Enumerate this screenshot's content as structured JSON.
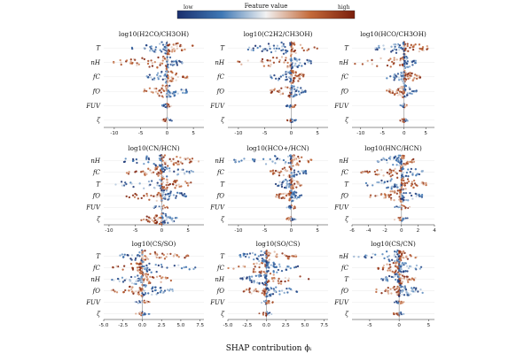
{
  "colorbar": {
    "title": "Feature value",
    "low_label": "low",
    "high_label": "high",
    "low_color": "#1a2f6e",
    "mid_color": "#f2f2f2",
    "high_color": "#7a1e0c"
  },
  "xlabel": "SHAP contribution ϕᵢ",
  "chart_data": [
    {
      "type": "beeswarm",
      "title": "log10(H2CO/CH3OH)",
      "features": [
        "T",
        "nH",
        "fC",
        "fO",
        "FUV",
        "ζ"
      ],
      "xlim": [
        -12,
        7
      ],
      "xticks": [
        -10,
        -5,
        0,
        5
      ],
      "spreads": [
        [
          -7,
          6
        ],
        [
          -11,
          3
        ],
        [
          -4,
          4
        ],
        [
          -5,
          4
        ],
        [
          -1,
          1
        ],
        [
          -1,
          1
        ]
      ]
    },
    {
      "type": "beeswarm",
      "title": "log10(C2H2/CH3OH)",
      "features": [
        "T",
        "nH",
        "fC",
        "fO",
        "FUV",
        "ζ"
      ],
      "xlim": [
        -12,
        7
      ],
      "xticks": [
        -10,
        -5,
        0,
        5
      ],
      "spreads": [
        [
          -9,
          5
        ],
        [
          -11,
          4
        ],
        [
          -4,
          3
        ],
        [
          -4,
          3
        ],
        [
          -1,
          1
        ],
        [
          -1,
          1
        ]
      ]
    },
    {
      "type": "beeswarm",
      "title": "log10(HCO/CH3OH)",
      "features": [
        "T",
        "nH",
        "fC",
        "fO",
        "FUV",
        "ζ"
      ],
      "xlim": [
        -12,
        7
      ],
      "xticks": [
        -10,
        -5,
        0,
        5
      ],
      "spreads": [
        [
          -7,
          6
        ],
        [
          -12,
          3
        ],
        [
          -4,
          4
        ],
        [
          -4,
          3
        ],
        [
          -1,
          1
        ],
        [
          -1,
          1
        ]
      ]
    },
    {
      "type": "beeswarm",
      "title": "log10(CN/HCN)",
      "features": [
        "nH",
        "fC",
        "T",
        "fO",
        "FUV",
        "ζ"
      ],
      "xlim": [
        -11,
        8
      ],
      "xticks": [
        -10,
        -5,
        0,
        5
      ],
      "spreads": [
        [
          -8,
          7
        ],
        [
          -7,
          6
        ],
        [
          -10,
          6
        ],
        [
          -7,
          5
        ],
        [
          -2,
          2
        ],
        [
          -4,
          3
        ]
      ]
    },
    {
      "type": "beeswarm",
      "title": "log10(HCO+/HCN)",
      "features": [
        "nH",
        "fC",
        "T",
        "fO",
        "FUV",
        "ζ"
      ],
      "xlim": [
        -12,
        7
      ],
      "xticks": [
        -10,
        -5,
        0,
        5
      ],
      "spreads": [
        [
          -11,
          5
        ],
        [
          -4,
          3
        ],
        [
          -3,
          2
        ],
        [
          -3,
          2
        ],
        [
          -1,
          1
        ],
        [
          -1,
          1
        ]
      ]
    },
    {
      "type": "beeswarm",
      "title": "log10(HNC/HCN)",
      "features": [
        "nH",
        "fC",
        "T",
        "fO",
        "FUV",
        "ζ"
      ],
      "xlim": [
        -6,
        4
      ],
      "xticks": [
        -6,
        -4,
        -2,
        0,
        2,
        4
      ],
      "spreads": [
        [
          -3,
          2
        ],
        [
          -5,
          3
        ],
        [
          -5,
          3
        ],
        [
          -4,
          3
        ],
        [
          -1,
          1
        ],
        [
          -1,
          1
        ]
      ]
    },
    {
      "type": "beeswarm",
      "title": "log10(CS/SO)",
      "features": [
        "T",
        "fC",
        "nH",
        "fO",
        "FUV",
        "ζ"
      ],
      "xlim": [
        -5,
        8
      ],
      "xticks": [
        -5.0,
        -2.5,
        0.0,
        2.5,
        5.0,
        7.5
      ],
      "spreads": [
        [
          -3,
          6
        ],
        [
          -4,
          7
        ],
        [
          -4,
          4
        ],
        [
          -4,
          4
        ],
        [
          -1,
          1
        ],
        [
          -1,
          1
        ]
      ]
    },
    {
      "type": "beeswarm",
      "title": "log10(SO/CS)",
      "features": [
        "T",
        "fC",
        "nH",
        "fO",
        "FUV",
        "ζ"
      ],
      "xlim": [
        -5,
        8
      ],
      "xticks": [
        -5.0,
        -2.5,
        0.0,
        2.5,
        5.0,
        7.5
      ],
      "spreads": [
        [
          -4,
          4
        ],
        [
          -5,
          5
        ],
        [
          -4,
          7
        ],
        [
          -3,
          4
        ],
        [
          -1,
          1
        ],
        [
          -1,
          1
        ]
      ]
    },
    {
      "type": "beeswarm",
      "title": "log10(CS/CN)",
      "features": [
        "nH",
        "fC",
        "T",
        "fO",
        "FUV",
        "ζ"
      ],
      "xlim": [
        -8,
        6
      ],
      "xticks": [
        -5,
        0,
        5
      ],
      "spreads": [
        [
          -8,
          3
        ],
        [
          -4,
          4
        ],
        [
          -3,
          3
        ],
        [
          -4,
          5
        ],
        [
          -1,
          1
        ],
        [
          -1,
          1
        ]
      ]
    }
  ]
}
